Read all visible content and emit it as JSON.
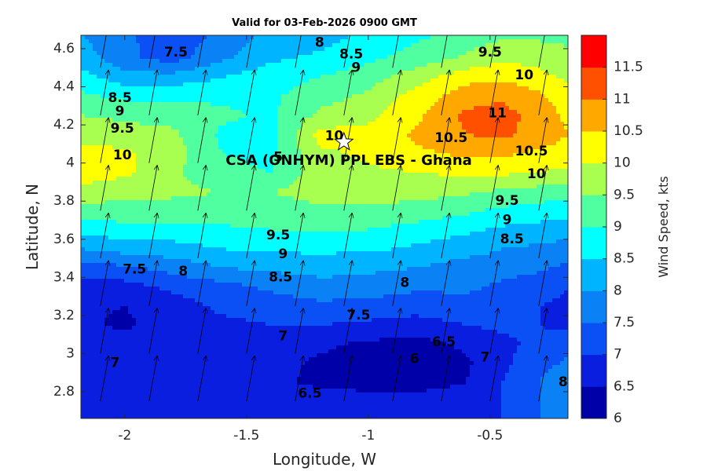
{
  "chart_data": {
    "type": "heatmap",
    "subtype": "filled-contour-with-wind-vectors",
    "title": "Valid for 03-Feb-2026 0900 GMT",
    "xlabel": "Longitude, W",
    "ylabel": "Latitude, N",
    "colorbar_label": "Wind Speed, kts",
    "xlim": [
      -2.18,
      -0.18
    ],
    "ylim": [
      2.66,
      4.67
    ],
    "x_ticks": [
      -2,
      -1.5,
      -1,
      -0.5
    ],
    "x_tick_labels": [
      "-2",
      "-1.5",
      "-1",
      "-0.5"
    ],
    "y_ticks": [
      2.8,
      3,
      3.2,
      3.4,
      3.6,
      3.8,
      4,
      4.2,
      4.4,
      4.6
    ],
    "y_tick_labels": [
      "2.8",
      "3",
      "3.2",
      "3.4",
      "3.6",
      "3.8",
      "4",
      "4.2",
      "4.4",
      "4.6"
    ],
    "colorbar_levels": [
      6,
      6.5,
      7,
      7.5,
      8,
      8.5,
      9,
      9.5,
      10,
      10.5,
      11,
      11.5
    ],
    "colorbar_tick_labels": [
      "6",
      "6.5",
      "7",
      "7.5",
      "8",
      "8.5",
      "9",
      "9.5",
      "10",
      "10.5",
      "11",
      "11.5"
    ],
    "colorbar_colors": [
      "#0000a8",
      "#0a1ee0",
      "#0a50f5",
      "#0a82f5",
      "#00b4ff",
      "#00ffff",
      "#50ffa0",
      "#a8ff50",
      "#ffff00",
      "#ffa800",
      "#ff5000",
      "#ff0000"
    ],
    "grid": false,
    "station": {
      "label": "CSA (ONHYM) PPL EBS  - Ghana",
      "lon": -1.1,
      "lat": 4.11,
      "marker": "white-star"
    },
    "speed_field": {
      "lats": [
        4.67,
        4.55,
        4.45,
        4.35,
        4.25,
        4.15,
        4.05,
        3.95,
        3.85,
        3.75,
        3.65,
        3.55,
        3.45,
        3.35,
        3.25,
        3.15,
        3.05,
        2.95,
        2.85,
        2.75,
        2.66
      ],
      "lons": [
        -2.18,
        -2.0,
        -1.8,
        -1.6,
        -1.4,
        -1.2,
        -1.0,
        -0.8,
        -0.6,
        -0.45,
        -0.3,
        -0.18
      ],
      "values": [
        [
          8.0,
          7.6,
          7.2,
          7.6,
          8.2,
          8.3,
          8.6,
          8.9,
          9.2,
          9.4,
          9.4,
          9.4
        ],
        [
          8.3,
          7.6,
          7.3,
          7.9,
          8.4,
          8.6,
          8.9,
          9.2,
          9.6,
          9.9,
          9.8,
          9.6
        ],
        [
          8.7,
          8.2,
          8.2,
          8.5,
          8.8,
          9.0,
          9.3,
          9.8,
          10.3,
          10.4,
          10.2,
          9.9
        ],
        [
          9.1,
          8.9,
          8.9,
          8.9,
          8.9,
          9.3,
          9.6,
          10.2,
          10.8,
          10.9,
          10.6,
          10.2
        ],
        [
          9.5,
          9.4,
          9.3,
          9.1,
          8.9,
          9.6,
          9.9,
          10.4,
          11.1,
          11.2,
          10.8,
          10.4
        ],
        [
          9.8,
          9.7,
          9.6,
          8.9,
          8.8,
          10.2,
          10.1,
          10.6,
          11.0,
          11.1,
          10.8,
          10.5
        ],
        [
          10.2,
          10.1,
          9.7,
          9.0,
          8.9,
          9.9,
          10.1,
          10.4,
          10.6,
          10.6,
          10.4,
          10.3
        ],
        [
          10.3,
          10.1,
          9.6,
          9.1,
          9.0,
          9.8,
          9.9,
          10.0,
          10.1,
          10.1,
          10.0,
          9.9
        ],
        [
          9.8,
          9.7,
          9.6,
          9.5,
          9.5,
          9.7,
          9.7,
          9.7,
          9.6,
          9.4,
          9.3,
          9.2
        ],
        [
          9.3,
          9.3,
          9.3,
          9.3,
          9.3,
          9.4,
          9.4,
          9.3,
          9.1,
          8.9,
          8.8,
          8.7
        ],
        [
          8.7,
          8.8,
          8.8,
          8.9,
          9.0,
          9.0,
          9.0,
          8.8,
          8.6,
          8.4,
          8.3,
          8.2
        ],
        [
          8.0,
          8.2,
          8.3,
          8.5,
          8.6,
          8.6,
          8.6,
          8.4,
          8.2,
          8.0,
          7.9,
          7.8
        ],
        [
          7.3,
          7.4,
          7.7,
          8.0,
          8.1,
          8.2,
          8.1,
          8.0,
          7.8,
          7.7,
          7.6,
          7.4
        ],
        [
          6.8,
          6.8,
          7.1,
          7.3,
          7.6,
          7.8,
          7.8,
          7.6,
          7.6,
          7.4,
          7.2,
          7.0
        ],
        [
          6.6,
          6.5,
          6.8,
          7.1,
          7.2,
          7.4,
          7.3,
          7.2,
          7.3,
          7.2,
          7.0,
          6.9
        ],
        [
          6.6,
          6.4,
          6.8,
          6.9,
          7.0,
          7.0,
          6.9,
          6.8,
          7.0,
          7.1,
          7.0,
          6.9
        ],
        [
          6.8,
          6.7,
          6.9,
          6.9,
          6.8,
          6.6,
          6.4,
          6.3,
          6.6,
          6.9,
          7.1,
          7.3
        ],
        [
          6.9,
          6.8,
          6.9,
          6.9,
          6.7,
          6.4,
          6.3,
          6.3,
          6.4,
          6.9,
          7.3,
          7.6
        ],
        [
          6.9,
          6.9,
          6.9,
          6.9,
          6.6,
          6.4,
          6.4,
          6.4,
          6.5,
          7.0,
          7.5,
          7.9
        ],
        [
          6.9,
          6.9,
          6.9,
          6.9,
          6.8,
          6.7,
          6.6,
          6.6,
          6.6,
          7.0,
          7.5,
          8.0
        ],
        [
          6.9,
          6.9,
          6.9,
          6.9,
          6.8,
          6.7,
          6.6,
          6.6,
          6.6,
          7.0,
          7.5,
          8.0
        ]
      ]
    },
    "wind_vectors": {
      "lons": [
        -2.1,
        -1.9,
        -1.7,
        -1.5,
        -1.3,
        -1.1,
        -0.9,
        -0.7,
        -0.5,
        -0.3
      ],
      "lats": [
        2.75,
        3.0,
        3.25,
        3.5,
        3.75,
        4.0,
        4.25,
        4.5
      ],
      "direction": "from south-southwest toward north-northeast"
    },
    "contour_labels": [
      {
        "text": "7.5",
        "lon": -1.79,
        "lat": 4.58
      },
      {
        "text": "8",
        "lon": -1.2,
        "lat": 4.63
      },
      {
        "text": "8.5",
        "lon": -1.07,
        "lat": 4.57
      },
      {
        "text": "9",
        "lon": -1.05,
        "lat": 4.5
      },
      {
        "text": "9.5",
        "lon": -0.5,
        "lat": 4.58
      },
      {
        "text": "10",
        "lon": -0.36,
        "lat": 4.46
      },
      {
        "text": "8.5",
        "lon": -2.02,
        "lat": 4.34
      },
      {
        "text": "9",
        "lon": -2.02,
        "lat": 4.27
      },
      {
        "text": "9.5",
        "lon": -2.01,
        "lat": 4.18
      },
      {
        "text": "10",
        "lon": -2.01,
        "lat": 4.04
      },
      {
        "text": "11",
        "lon": -0.47,
        "lat": 4.26
      },
      {
        "text": "10.5",
        "lon": -0.66,
        "lat": 4.13
      },
      {
        "text": "10.5",
        "lon": -0.33,
        "lat": 4.06
      },
      {
        "text": "10",
        "lon": -0.31,
        "lat": 3.94
      },
      {
        "text": "9.5",
        "lon": -0.43,
        "lat": 3.8
      },
      {
        "text": "9",
        "lon": -0.43,
        "lat": 3.7
      },
      {
        "text": "8.5",
        "lon": -0.41,
        "lat": 3.6
      },
      {
        "text": "9.5",
        "lon": -1.37,
        "lat": 3.62
      },
      {
        "text": "9",
        "lon": -1.35,
        "lat": 3.52
      },
      {
        "text": "8.5",
        "lon": -1.36,
        "lat": 3.4
      },
      {
        "text": "7.5",
        "lon": -1.96,
        "lat": 3.44
      },
      {
        "text": "8",
        "lon": -1.76,
        "lat": 3.43
      },
      {
        "text": "8",
        "lon": -0.85,
        "lat": 3.37
      },
      {
        "text": "7.5",
        "lon": -1.04,
        "lat": 3.2
      },
      {
        "text": "7",
        "lon": -1.35,
        "lat": 3.09
      },
      {
        "text": "6.5",
        "lon": -0.69,
        "lat": 3.06
      },
      {
        "text": "6",
        "lon": -0.81,
        "lat": 2.97
      },
      {
        "text": "7",
        "lon": -0.52,
        "lat": 2.98
      },
      {
        "text": "7",
        "lon": -2.04,
        "lat": 2.95
      },
      {
        "text": "6.5",
        "lon": -1.24,
        "lat": 2.79
      },
      {
        "text": "8",
        "lon": -0.2,
        "lat": 2.85
      },
      {
        "text": "5",
        "lon": -1.37,
        "lat": 4.03
      },
      {
        "text": "10",
        "lon": -1.14,
        "lat": 4.14
      }
    ]
  }
}
